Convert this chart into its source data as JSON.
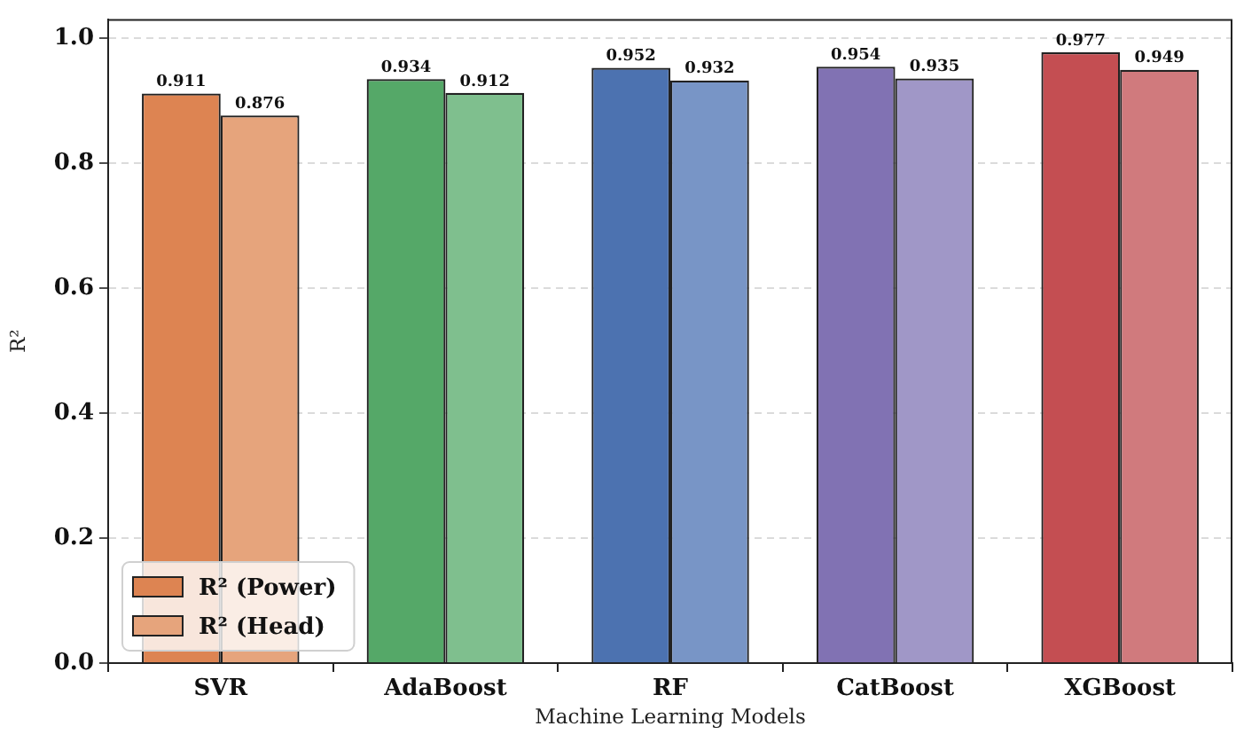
{
  "chart_data": {
    "type": "bar",
    "xlabel": "Machine Learning Models",
    "ylabel": "R²",
    "categories": [
      "SVR",
      "AdaBoost",
      "RF",
      "CatBoost",
      "XGBoost"
    ],
    "series": [
      {
        "name": "R² (Power)",
        "colors": [
          "#dd8452",
          "#55a868",
          "#4c72b0",
          "#8172b3",
          "#c44e52"
        ],
        "values": [
          0.911,
          0.934,
          0.952,
          0.954,
          0.977
        ]
      },
      {
        "name": "R² (Head)",
        "colors": [
          "#e6a47c",
          "#7fbf8e",
          "#7895c6",
          "#a097c7",
          "#d07a7d"
        ],
        "values": [
          0.876,
          0.912,
          0.932,
          0.935,
          0.949
        ]
      }
    ],
    "ylim": [
      0,
      1.03
    ],
    "yticks": [
      {
        "value": 0,
        "label": "0.0"
      },
      0.2,
      0.4,
      0.6,
      0.8,
      {
        "value": 1,
        "label": "1.0"
      }
    ],
    "grid": "y",
    "legend": "bottom left",
    "data_labels": true
  }
}
